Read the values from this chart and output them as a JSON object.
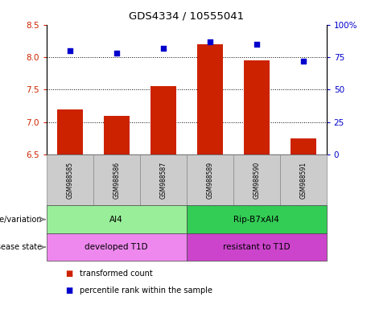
{
  "title": "GDS4334 / 10555041",
  "samples": [
    "GSM988585",
    "GSM988586",
    "GSM988587",
    "GSM988589",
    "GSM988590",
    "GSM988591"
  ],
  "bar_values": [
    7.2,
    7.1,
    7.55,
    8.2,
    7.95,
    6.75
  ],
  "scatter_values": [
    80,
    78,
    82,
    87,
    85,
    72
  ],
  "bar_bottom": 6.5,
  "ylim_left": [
    6.5,
    8.5
  ],
  "ylim_right": [
    0,
    100
  ],
  "yticks_left": [
    6.5,
    7.0,
    7.5,
    8.0,
    8.5
  ],
  "yticks_right": [
    0,
    25,
    50,
    75,
    100
  ],
  "bar_color": "#cc2200",
  "scatter_color": "#0000cc",
  "genotype_groups": [
    {
      "label": "AI4",
      "start": 0,
      "end": 3,
      "color": "#99ee99"
    },
    {
      "label": "Rip-B7xAI4",
      "start": 3,
      "end": 6,
      "color": "#33cc55"
    }
  ],
  "disease_groups": [
    {
      "label": "developed T1D",
      "start": 0,
      "end": 3,
      "color": "#ee88ee"
    },
    {
      "label": "resistant to T1D",
      "start": 3,
      "end": 6,
      "color": "#cc44cc"
    }
  ],
  "legend_bar_label": "transformed count",
  "legend_scatter_label": "percentile rank within the sample",
  "genotype_label": "genotype/variation",
  "disease_label": "disease state",
  "sample_box_color": "#cccccc",
  "grid_yticks": [
    7.0,
    7.5,
    8.0
  ]
}
